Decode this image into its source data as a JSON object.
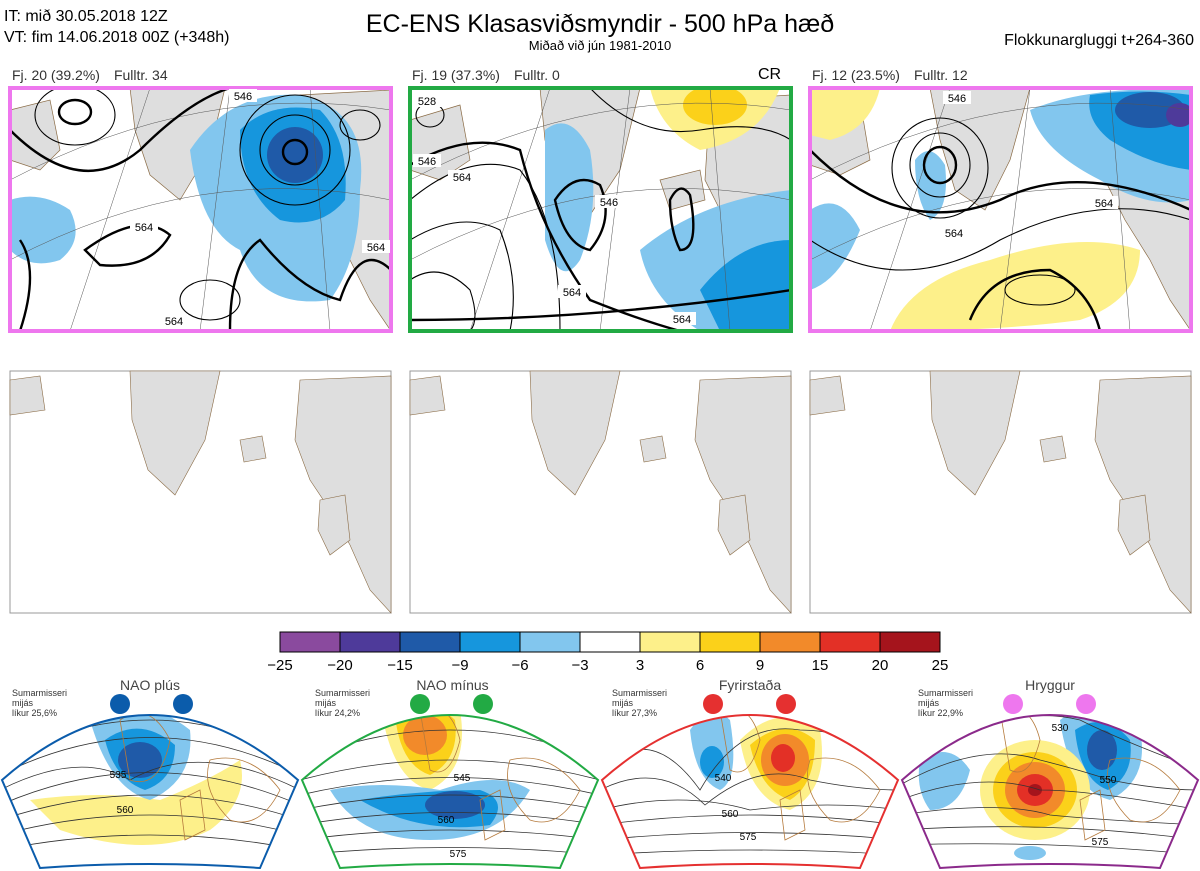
{
  "header": {
    "it_line": "IT: mið 30.05.2018 12Z",
    "vt_line": "VT: fim 14.06.2018 00Z  (+348h)",
    "title": "EC-ENS Klasasviðsmyndir - 500 hPa hæð",
    "subtitle": "Miðað við jún 1981-2010",
    "window": "Flokkunargluggi t+264-360"
  },
  "panels": [
    {
      "count": "Fj. 20 (39.2%)",
      "repr": "Fulltr. 34",
      "border": "#ee77ee",
      "tag": ""
    },
    {
      "count": "Fj. 19 (37.3%)",
      "repr": "Fulltr. 0",
      "border": "#22aa44",
      "tag": "CR"
    },
    {
      "count": "Fj. 12 (23.5%)",
      "repr": "Fulltr. 12",
      "border": "#ee77ee",
      "tag": ""
    }
  ],
  "contour_labels": [
    "564",
    "546",
    "564",
    "564",
    "528",
    "546",
    "564",
    "546",
    "564",
    "564",
    "546",
    "564",
    "564"
  ],
  "colorbar": {
    "ticks": [
      "−25",
      "−20",
      "−15",
      "−9",
      "−6",
      "−3",
      "3",
      "6",
      "9",
      "15",
      "20",
      "25"
    ],
    "colors": [
      "#8a4a9e",
      "#4e3a9a",
      "#1f5aa8",
      "#1696dd",
      "#82c6ee",
      "#ffffff",
      "#fdf08a",
      "#fbd11a",
      "#f28a2a",
      "#e33026",
      "#a5141c"
    ]
  },
  "regimes": [
    {
      "name": "NAO plús",
      "season": "Sumarmisseri",
      "scope": "mijás",
      "prob": "líkur 25,6%",
      "color": "#0b5cab",
      "labels": [
        "535",
        "560"
      ]
    },
    {
      "name": "NAO mínus",
      "season": "Sumarmisseri",
      "scope": "mijás",
      "prob": "líkur 24,2%",
      "color": "#22aa44",
      "labels": [
        "545",
        "560",
        "575"
      ]
    },
    {
      "name": "Fyrirstaða",
      "season": "Sumarmisseri",
      "scope": "mijás",
      "prob": "líkur 27,3%",
      "color": "#e53030",
      "labels": [
        "540",
        "560",
        "575"
      ]
    },
    {
      "name": "Hryggur",
      "season": "Sumarmisseri",
      "scope": "mijás",
      "prob": "líkur 22,9%",
      "color": "#ee77ee",
      "labels": [
        "530",
        "550",
        "575"
      ]
    }
  ]
}
